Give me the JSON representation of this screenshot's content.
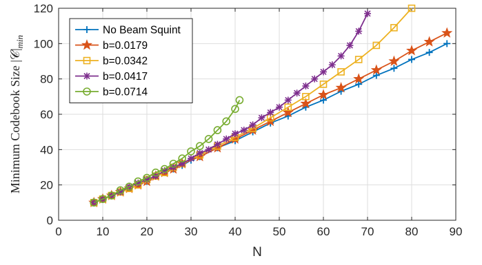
{
  "chart_data": {
    "type": "line",
    "title": "",
    "xlabel": "N",
    "ylabel": "Minimum Codebook Size |𝒞|",
    "ylabel_subscript": "min",
    "xlim": [
      0,
      90
    ],
    "ylim": [
      0,
      120
    ],
    "xticks": [
      0,
      10,
      20,
      30,
      40,
      50,
      60,
      70,
      80,
      90
    ],
    "yticks": [
      0,
      20,
      40,
      60,
      80,
      100,
      120
    ],
    "grid": true,
    "legend_position": "top-left",
    "series": [
      {
        "name": "No Beam Squint",
        "color": "#0072BD",
        "marker": "plus",
        "x": [
          8,
          10,
          12,
          14,
          16,
          18,
          20,
          22,
          24,
          26,
          28,
          30,
          32,
          36,
          40,
          44,
          48,
          52,
          56,
          60,
          64,
          68,
          72,
          76,
          80,
          84,
          88
        ],
        "y": [
          10,
          12,
          14,
          16,
          18,
          20,
          22,
          25,
          27,
          29,
          31,
          34,
          36,
          41,
          45,
          50,
          55,
          59,
          64,
          68,
          73,
          77,
          82,
          86,
          91,
          95,
          100
        ]
      },
      {
        "name": "b=0.0179",
        "color": "#D95319",
        "marker": "star",
        "x": [
          8,
          10,
          12,
          14,
          16,
          18,
          20,
          22,
          24,
          26,
          28,
          32,
          36,
          40,
          44,
          48,
          52,
          56,
          60,
          64,
          68,
          72,
          76,
          80,
          84,
          88
        ],
        "y": [
          10,
          12,
          14,
          16,
          18,
          20,
          22,
          25,
          27,
          29,
          32,
          36,
          41,
          46,
          51,
          56,
          61,
          66,
          71,
          75,
          80,
          85,
          90,
          96,
          101,
          106
        ]
      },
      {
        "name": "b=0.0342",
        "color": "#EDB120",
        "marker": "square",
        "x": [
          8,
          10,
          12,
          14,
          16,
          18,
          20,
          22,
          24,
          26,
          28,
          32,
          36,
          40,
          44,
          48,
          52,
          56,
          60,
          64,
          68,
          72,
          76,
          80
        ],
        "y": [
          10,
          12,
          14,
          16,
          18,
          20,
          23,
          25,
          27,
          30,
          32,
          37,
          42,
          47,
          52,
          58,
          64,
          70,
          77,
          84,
          91,
          99,
          109,
          120
        ]
      },
      {
        "name": "b=0.0417",
        "color": "#7E2F8E",
        "marker": "asterisk",
        "x": [
          8,
          10,
          12,
          14,
          16,
          18,
          20,
          22,
          24,
          26,
          28,
          30,
          32,
          34,
          36,
          38,
          40,
          42,
          44,
          46,
          48,
          50,
          52,
          54,
          56,
          58,
          60,
          62,
          64,
          66,
          68,
          70
        ],
        "y": [
          10,
          12,
          14,
          16,
          19,
          21,
          23,
          25,
          28,
          30,
          32,
          35,
          38,
          40,
          43,
          46,
          49,
          51,
          54,
          58,
          61,
          64,
          68,
          72,
          76,
          80,
          84,
          88,
          93,
          99,
          107,
          117
        ]
      },
      {
        "name": "b=0.0714",
        "color": "#77AC30",
        "marker": "circle",
        "x": [
          8,
          10,
          12,
          14,
          16,
          18,
          20,
          22,
          24,
          26,
          28,
          30,
          32,
          34,
          36,
          38,
          40,
          41
        ],
        "y": [
          10,
          12,
          14,
          17,
          19,
          22,
          24,
          27,
          29,
          32,
          35,
          39,
          42,
          46,
          51,
          56,
          63,
          68
        ]
      }
    ]
  }
}
